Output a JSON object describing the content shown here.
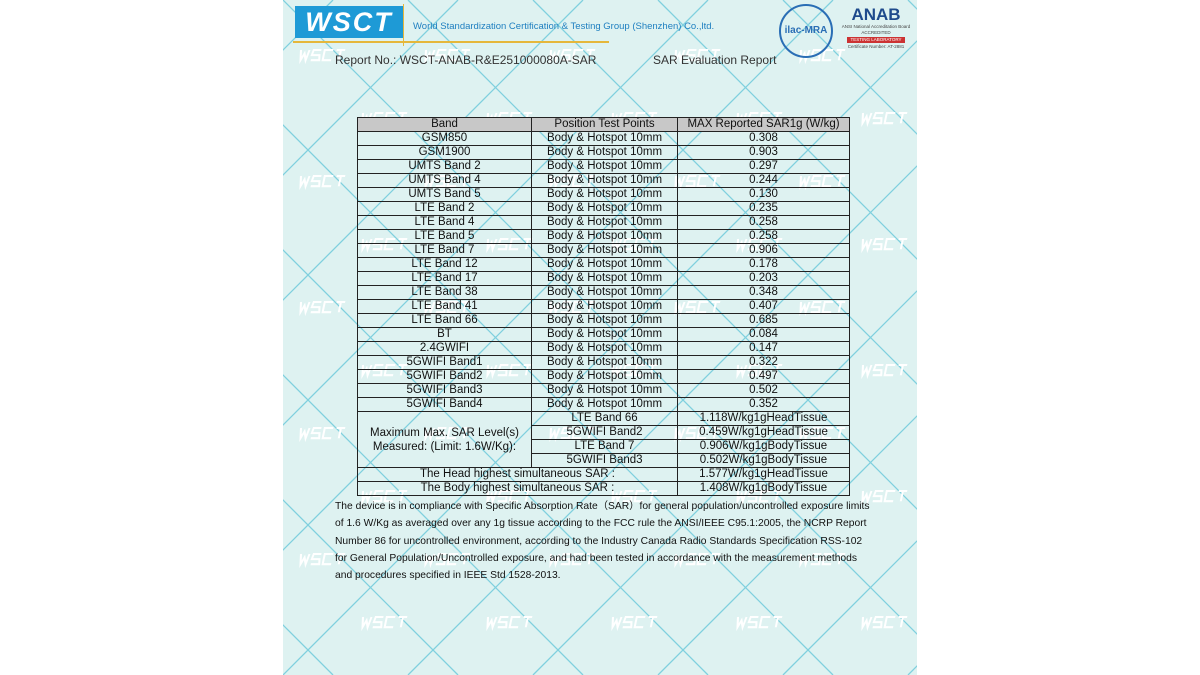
{
  "header": {
    "logo_text": "WSCT",
    "company": "World Standardization Certification & Testing Group (Shenzhen) Co.,ltd.",
    "report_no": "Report No.: WSCT-ANAB-R&E251000080A-SAR",
    "report_title": "SAR Evaluation Report",
    "ilac_logo": "ilac-MRA",
    "anab_logo": "ANAB",
    "anab_sub": "ANSI National Accreditation Board",
    "anab_accredited": "ACCREDITED",
    "anab_lab": "TESTING LABORATORY",
    "anab_cert": "Certificate Number: AT-2881"
  },
  "watermark_text": "WSCT",
  "table": {
    "headers": [
      "Band",
      "Position Test Points",
      "MAX Reported SAR1g (W/kg)"
    ],
    "rows": [
      [
        "GSM850",
        "Body & Hotspot 10mm",
        "0.308"
      ],
      [
        "GSM1900",
        "Body & Hotspot 10mm",
        "0.903"
      ],
      [
        "UMTS Band 2",
        "Body & Hotspot 10mm",
        "0.297"
      ],
      [
        "UMTS Band 4",
        "Body & Hotspot 10mm",
        "0.244"
      ],
      [
        "UMTS Band 5",
        "Body & Hotspot 10mm",
        "0.130"
      ],
      [
        "LTE Band 2",
        "Body & Hotspot 10mm",
        "0.235"
      ],
      [
        "LTE Band 4",
        "Body & Hotspot 10mm",
        "0.258"
      ],
      [
        "LTE Band 5",
        "Body & Hotspot 10mm",
        "0.258"
      ],
      [
        "LTE Band 7",
        "Body & Hotspot 10mm",
        "0.906"
      ],
      [
        "LTE Band 12",
        "Body & Hotspot 10mm",
        "0.178"
      ],
      [
        "LTE Band 17",
        "Body & Hotspot 10mm",
        "0.203"
      ],
      [
        "LTE Band 38",
        "Body & Hotspot 10mm",
        "0.348"
      ],
      [
        "LTE Band 41",
        "Body & Hotspot 10mm",
        "0.407"
      ],
      [
        "LTE Band 66",
        "Body & Hotspot 10mm",
        "0.685"
      ],
      [
        "BT",
        "Body & Hotspot 10mm",
        "0.084"
      ],
      [
        "2.4GWIFI",
        "Body & Hotspot 10mm",
        "0.147"
      ],
      [
        "5GWIFI Band1",
        "Body & Hotspot 10mm",
        "0.322"
      ],
      [
        "5GWIFI Band2",
        "Body & Hotspot 10mm",
        "0.497"
      ],
      [
        "5GWIFI Band3",
        "Body & Hotspot 10mm",
        "0.502"
      ],
      [
        "5GWIFI Band4",
        "Body & Hotspot 10mm",
        "0.352"
      ]
    ],
    "max_label_line1": "Maximum Max. SAR Level(s)",
    "max_label_line2": "Measured:  (Limit: 1.6W/Kg):",
    "max_rows": [
      [
        "LTE Band 66",
        "1.118W/kg1gHeadTissue"
      ],
      [
        "5GWIFI Band2",
        "0.459W/kg1gHeadTissue"
      ],
      [
        "LTE Band 7",
        "0.906W/kg1gBodyTissue"
      ],
      [
        "5GWIFI Band3",
        "0.502W/kg1gBodyTissue"
      ]
    ],
    "head_label": "The Head highest simultaneous SAR :",
    "head_value": "1.577W/kg1gHeadTissue",
    "body_label": "The Body highest simultaneous SAR :",
    "body_value": "1.408W/kg1gBodyTissue"
  },
  "paragraph": "The device is in compliance with Specific Absorption Rate（SAR）for general population/uncontrolled exposure limits of 1.6 W/Kg as averaged over any 1g tissue according to the FCC rule the ANSI/IEEE C95.1:2005, the NCRP Report Number 86 for uncontrolled environment, according to the Industry Canada Radio Standards Specification RSS-102 for General Population/Uncontrolled exposure, and had been tested in accordance with the measurement methods and procedures specified in IEEE Std 1528-2013."
}
